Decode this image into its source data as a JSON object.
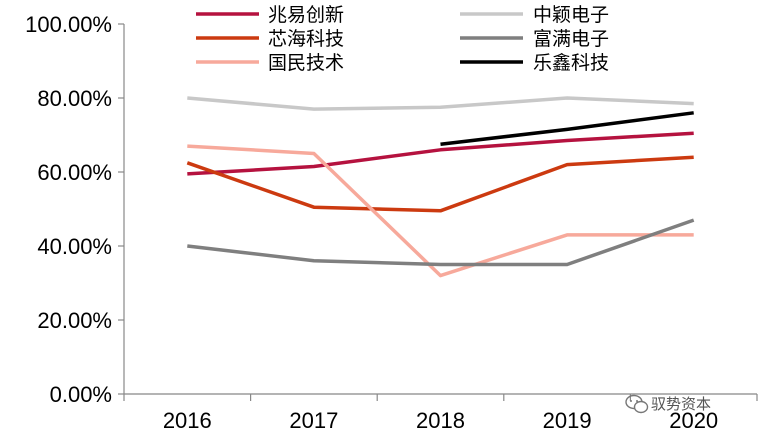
{
  "chart_data": {
    "type": "line",
    "categories": [
      "2016",
      "2017",
      "2018",
      "2019",
      "2020"
    ],
    "ylim": [
      0,
      100
    ],
    "yticks": [
      "0.00%",
      "20.00%",
      "40.00%",
      "60.00%",
      "80.00%",
      "100.00%"
    ],
    "grid": false,
    "legend_position": "top",
    "series": [
      {
        "name": "兆易创新",
        "color": "#b5123f",
        "values": [
          59.5,
          61.5,
          66.0,
          68.5,
          70.5
        ]
      },
      {
        "name": "芯海科技",
        "color": "#cc3a10",
        "values": [
          62.5,
          50.5,
          49.5,
          62.0,
          64.0
        ]
      },
      {
        "name": "国民技术",
        "color": "#f7a99b",
        "values": [
          67.0,
          65.0,
          32.0,
          43.0,
          43.0
        ]
      },
      {
        "name": "中颖电子",
        "color": "#c8c8c8",
        "values": [
          80.0,
          77.0,
          77.5,
          80.0,
          78.5
        ]
      },
      {
        "name": "富满电子",
        "color": "#7f7f7f",
        "values": [
          40.0,
          36.0,
          35.0,
          35.0,
          47.0
        ]
      },
      {
        "name": "乐鑫科技",
        "color": "#000000",
        "values": [
          null,
          null,
          67.5,
          71.5,
          76.0
        ]
      }
    ]
  },
  "watermark": {
    "text": "驭势资本",
    "icon": "wechat-icon"
  }
}
